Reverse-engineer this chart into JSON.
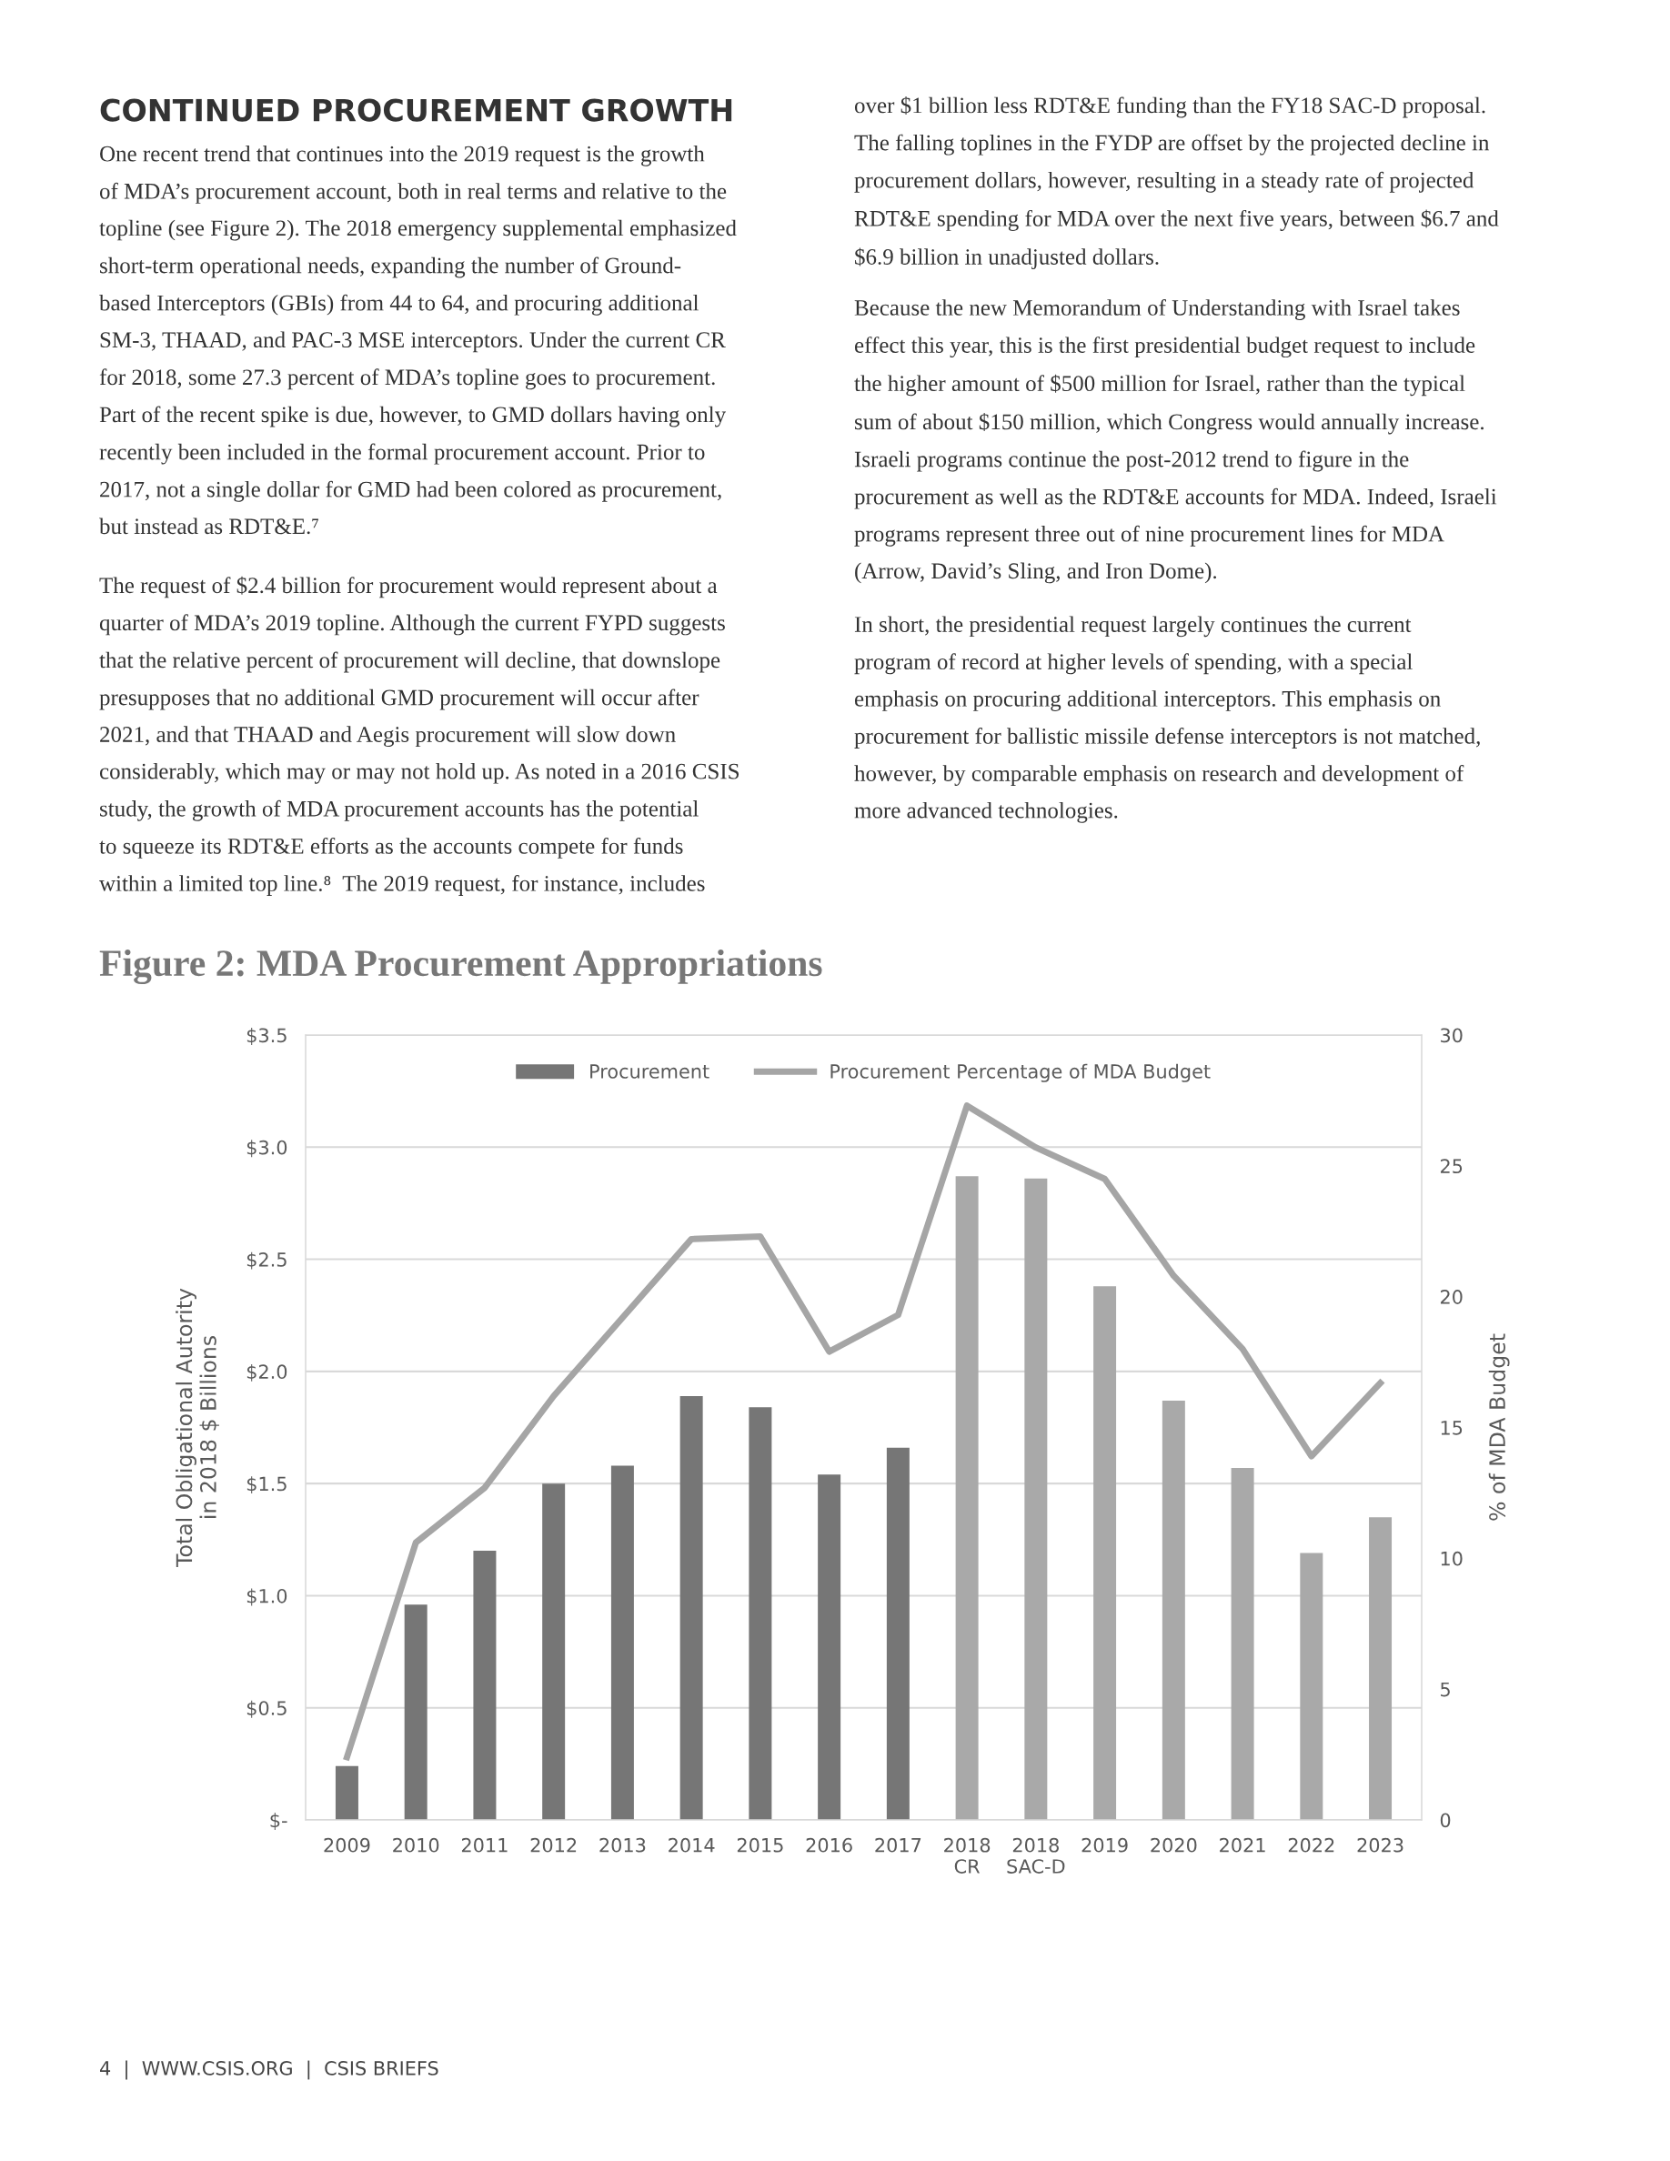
{
  "chart_data": {
    "type": "bar",
    "title": "Figure 2: MDA Procurement Appropriations",
    "categories": [
      "2009",
      "2010",
      "2011",
      "2012",
      "2013",
      "2014",
      "2015",
      "2016",
      "2017",
      "2018\nCR",
      "2018\nSAC-D",
      "2019",
      "2020",
      "2021",
      "2022",
      "2023"
    ],
    "series": [
      {
        "name": "Procurement",
        "colors": [
          "#767676",
          "#767676",
          "#767676",
          "#767676",
          "#767676",
          "#767676",
          "#767676",
          "#767676",
          "#767676",
          "#a9a9a9",
          "#a9a9a9",
          "#a9a9a9",
          "#a9a9a9",
          "#a9a9a9",
          "#a9a9a9",
          "#a9a9a9"
        ],
        "values": [
          0.24,
          0.96,
          1.2,
          1.5,
          1.58,
          1.89,
          1.84,
          1.54,
          1.66,
          2.87,
          2.86,
          2.38,
          1.87,
          1.57,
          1.19,
          1.35
        ]
      },
      {
        "name": "Procurement Percentage of MDA Budget",
        "type": "line",
        "axis": "y2",
        "color": "#a5a5a5",
        "values": [
          2.4,
          10.6,
          12.7,
          16.2,
          19.2,
          22.2,
          22.3,
          17.9,
          19.3,
          27.3,
          25.7,
          24.5,
          20.8,
          18.0,
          13.9,
          16.7
        ]
      }
    ],
    "ylabel": "Total Obligational Autority\nin 2018 $ Billions",
    "y2label": "% of MDA Budget",
    "ylim": [
      0,
      3.5
    ],
    "yticks": [
      {
        "value": 0,
        "label": "$-"
      },
      {
        "value": 0.5,
        "label": "$0.5"
      },
      {
        "value": 1.0,
        "label": "$1.0"
      },
      {
        "value": 1.5,
        "label": "$1.5"
      },
      {
        "value": 2.0,
        "label": "$2.0"
      },
      {
        "value": 2.5,
        "label": "$2.5"
      },
      {
        "value": 3.0,
        "label": "$3.0"
      },
      {
        "value": 3.5,
        "label": "$3.5"
      }
    ],
    "y2lim": [
      0,
      30
    ],
    "y2ticks": [
      0,
      5,
      10,
      15,
      20,
      25,
      30
    ],
    "grid": "y",
    "legend": "top",
    "annotations": [
      "CONTINUED PROCUREMENT GROWTH",
      "One recent trend that continues into the 2019 request is the growth\nof MDA’s procurement account, both in real terms and relative to the\ntopline (see Figure 2). The 2018 emergency supplemental emphasized\nshort-term operational needs, expanding the number of Ground-\nbased Interceptors (GBIs) from 44 to 64, and procuring additional\nSM-3, THAAD, and PAC-3 MSE interceptors. Under the current CR\nfor 2018, some 27.3 percent of MDA’s topline goes to procurement.\nPart of the recent spike is due, however, to GMD dollars having only\nrecently been included in the formal procurement account. Prior to\n2017, not a single dollar for GMD had been colored as procurement,\nbut instead as RDT&E.⁷",
      "The request of $2.4 billion for procurement would represent about a\nquarter of MDA’s 2019 topline. Although the current FYPD suggests\nthat the relative percent of procurement will decline, that downslope\npresupposes that no additional GMD procurement will occur after\n2021, and that THAAD and Aegis procurement will slow down\nconsiderably, which may or may not hold up. As noted in a 2016 CSIS\nstudy, the growth of MDA procurement accounts has the potential\nto squeeze its RDT&E efforts as the accounts compete for funds\nwithin a limited top line.⁸  The 2019 request, for instance, includes",
      "over $1 billion less RDT&E funding than the FY18 SAC-D proposal.\nThe falling toplines in the FYDP are offset by the projected decline in\nprocurement dollars, however, resulting in a steady rate of projected\nRDT&E spending for MDA over the next five years, between $6.7 and\n$6.9 billion in unadjusted dollars.",
      "Because the new Memorandum of Understanding with Israel takes\neffect this year, this is the first presidential budget request to include\nthe higher amount of $500 million for Israel, rather than the typical\nsum of about $150 million, which Congress would annually increase.\nIsraeli programs continue the post-2012 trend to figure in the\nprocurement as well as the RDT&E accounts for MDA. Indeed, Israeli\nprograms represent three out of nine procurement lines for MDA\n(Arrow, David’s Sling, and Iron Dome).",
      "In short, the presidential request largely continues the current\nprogram of record at higher levels of spending, with a special\nemphasis on procuring additional interceptors. This emphasis on\nprocurement for ballistic missile defense interceptors is not matched,\nhowever, by comparable emphasis on research and development of\nmore advanced technologies.",
      "4  |  WWW.CSIS.ORG  |  CSIS BRIEFS"
    ]
  }
}
